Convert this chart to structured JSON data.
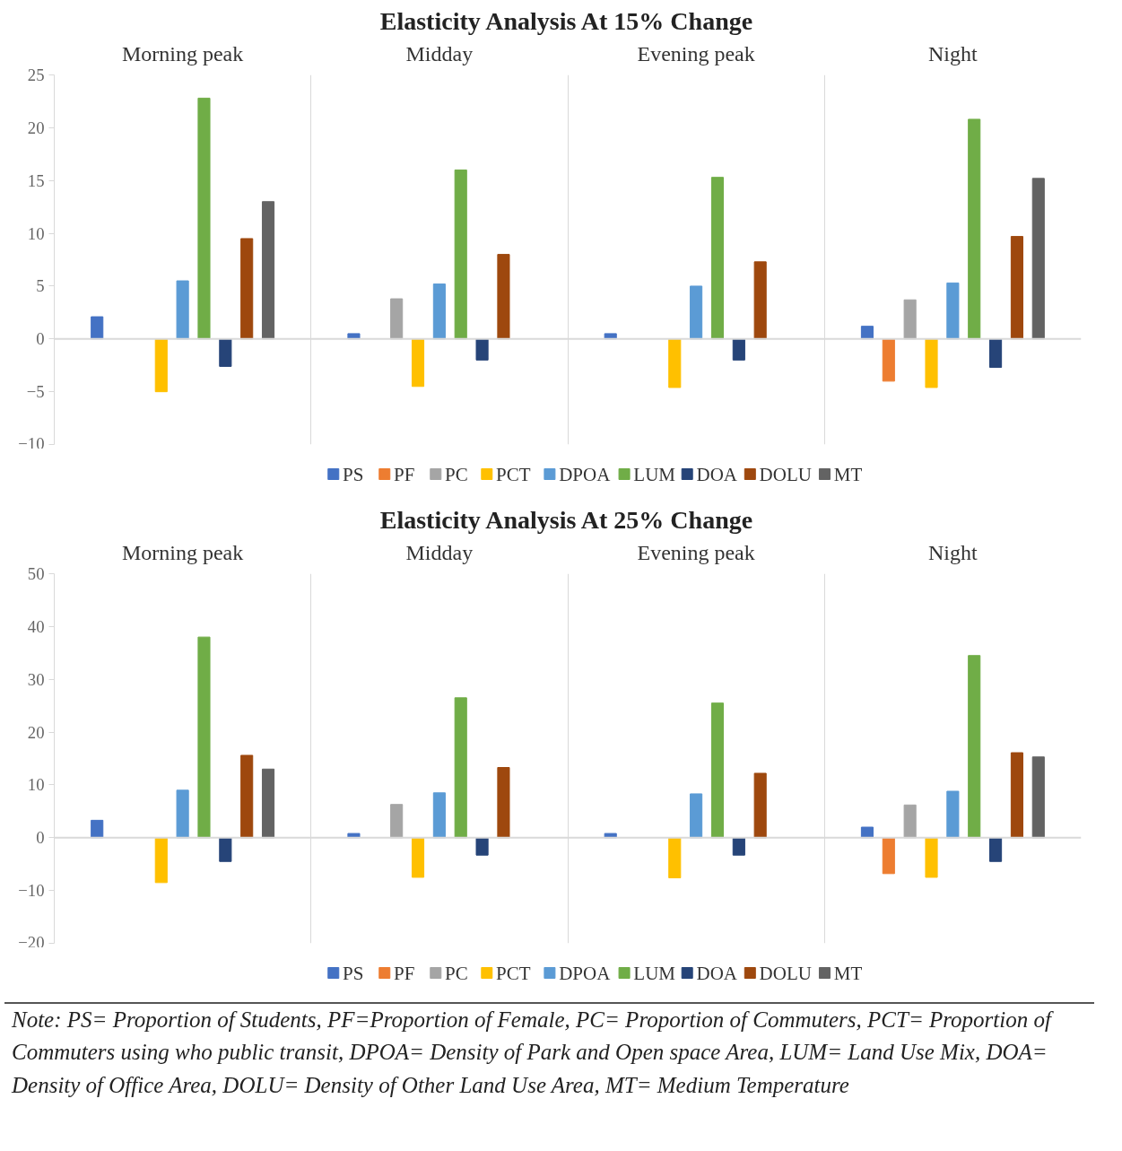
{
  "chart_data": [
    {
      "type": "bar",
      "title": "Elasticity Analysis At 15% Change",
      "categories": [
        "Morning peak",
        "Midday",
        "Evening peak",
        "Night"
      ],
      "ylim": [
        -10,
        25
      ],
      "yticks": [
        -10,
        -5,
        0,
        5,
        10,
        15,
        20,
        25
      ],
      "grid": "x",
      "legend": "bottom",
      "series": [
        {
          "name": "PS",
          "color": "#4472c4",
          "values": [
            2.1,
            0.5,
            0.5,
            1.2
          ]
        },
        {
          "name": "PF",
          "color": "#ed7d31",
          "values": [
            null,
            null,
            null,
            -4.0
          ]
        },
        {
          "name": "PC",
          "color": "#a5a5a5",
          "values": [
            null,
            3.8,
            null,
            3.7
          ]
        },
        {
          "name": "PCT",
          "color": "#ffc000",
          "values": [
            -5.0,
            -4.5,
            -4.6,
            -4.6
          ]
        },
        {
          "name": "DPOA",
          "color": "#5b9bd5",
          "values": [
            5.5,
            5.2,
            5.0,
            5.3
          ]
        },
        {
          "name": "LUM",
          "color": "#70ad47",
          "values": [
            22.8,
            16.0,
            15.3,
            20.8
          ]
        },
        {
          "name": "DOA",
          "color": "#264478",
          "values": [
            -2.6,
            -2.0,
            -2.0,
            -2.7
          ]
        },
        {
          "name": "DOLU",
          "color": "#9e480e",
          "values": [
            9.5,
            8.0,
            7.3,
            9.7
          ]
        },
        {
          "name": "MT",
          "color": "#636363",
          "values": [
            13.0,
            null,
            null,
            15.2
          ]
        }
      ]
    },
    {
      "type": "bar",
      "title": "Elasticity Analysis At 25% Change",
      "categories": [
        "Morning peak",
        "Midday",
        "Evening peak",
        "Night"
      ],
      "ylim": [
        -20,
        50
      ],
      "yticks": [
        -20,
        -10,
        0,
        10,
        20,
        30,
        40,
        50
      ],
      "grid": "x",
      "legend": "bottom",
      "annotations": [
        "Note: PS= Proportion of Students, PF=Proportion of Female, PC= Proportion of Commuters, PCT= Proportion of Commuters using who public transit, DPOA= Density of Park and Open space Area, LUM= Land Use Mix, DOA= Density of Office Area, DOLU= Density of Other Land Use Area, MT= Medium Temperature"
      ],
      "series": [
        {
          "name": "PS",
          "color": "#4472c4",
          "values": [
            3.3,
            0.8,
            0.8,
            2.0
          ]
        },
        {
          "name": "PF",
          "color": "#ed7d31",
          "values": [
            null,
            null,
            null,
            -6.8
          ]
        },
        {
          "name": "PC",
          "color": "#a5a5a5",
          "values": [
            null,
            6.3,
            null,
            6.2
          ]
        },
        {
          "name": "PCT",
          "color": "#ffc000",
          "values": [
            -8.5,
            -7.5,
            -7.6,
            -7.5
          ]
        },
        {
          "name": "DPOA",
          "color": "#5b9bd5",
          "values": [
            9.0,
            8.5,
            8.3,
            8.8
          ]
        },
        {
          "name": "LUM",
          "color": "#70ad47",
          "values": [
            38.0,
            26.5,
            25.5,
            34.5
          ]
        },
        {
          "name": "DOA",
          "color": "#264478",
          "values": [
            -4.5,
            -3.3,
            -3.3,
            -4.5
          ]
        },
        {
          "name": "DOLU",
          "color": "#9e480e",
          "values": [
            15.6,
            13.3,
            12.2,
            16.1
          ]
        },
        {
          "name": "MT",
          "color": "#636363",
          "values": [
            13.0,
            null,
            null,
            15.3
          ]
        }
      ]
    }
  ]
}
